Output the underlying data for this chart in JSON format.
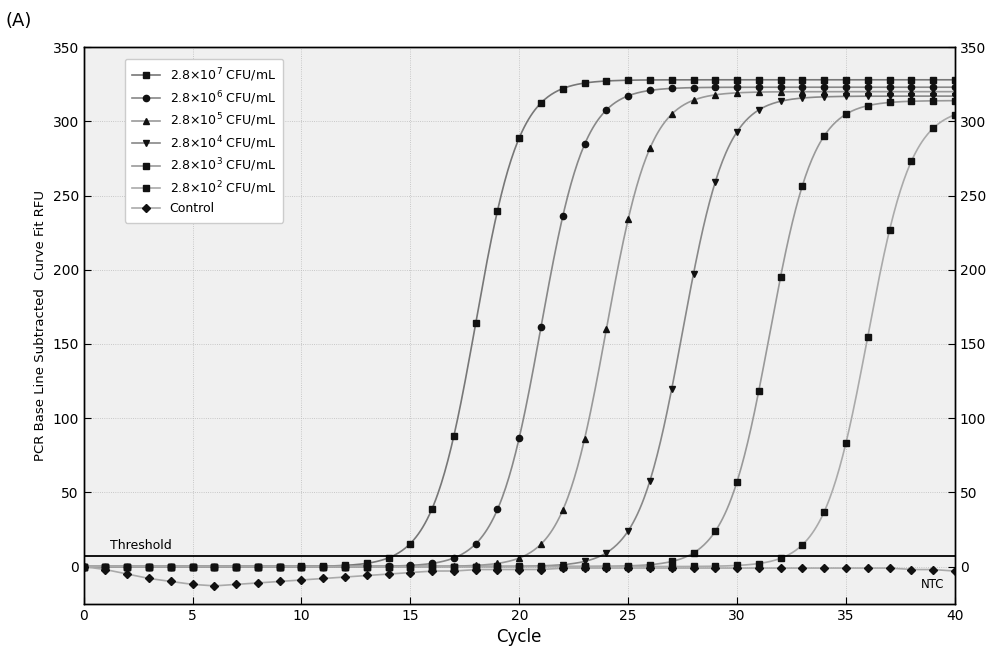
{
  "title": "(A)",
  "xlabel": "Cycle",
  "ylabel": "PCR Base Line Subtracted  Curve Fit RFU",
  "xlim": [
    0,
    40
  ],
  "ylim": [
    -25,
    350
  ],
  "yticks": [
    0,
    50,
    100,
    150,
    200,
    250,
    300,
    350
  ],
  "xticks": [
    0,
    5,
    10,
    15,
    20,
    25,
    30,
    35,
    40
  ],
  "threshold_y": 7,
  "threshold_label": "Threshold",
  "ntc_label": "NTC",
  "series": [
    {
      "label": "2.8×10$^7$ CFU/mL",
      "midpoint": 18.0,
      "steepness": 1.0,
      "color": "#999999",
      "marker": "s",
      "plateau": 328
    },
    {
      "label": "2.8×10$^6$ CFU/mL",
      "midpoint": 21.0,
      "steepness": 1.0,
      "color": "#888888",
      "marker": "o",
      "plateau": 323
    },
    {
      "label": "2.8×10$^5$ CFU/mL",
      "midpoint": 24.0,
      "steepness": 1.0,
      "color": "#999999",
      "marker": "^",
      "plateau": 320
    },
    {
      "label": "2.8×10$^4$ CFU/mL",
      "midpoint": 27.5,
      "steepness": 1.0,
      "color": "#888888",
      "marker": "v",
      "plateau": 317
    },
    {
      "label": "2.8×10$^3$ CFU/mL",
      "midpoint": 31.5,
      "steepness": 1.0,
      "color": "#999999",
      "marker": "s",
      "plateau": 314
    },
    {
      "label": "2.8×10$^2$ CFU/mL",
      "midpoint": 36.0,
      "steepness": 1.0,
      "color": "#aaaaaa",
      "marker": "s",
      "plateau": 310
    }
  ],
  "control_label": "Control",
  "background_color": "#f0f0f0",
  "fig_bg": "#ffffff",
  "line_color": "#555555",
  "marker_color": "#111111",
  "marker_size": 4.5,
  "linewidth": 1.2
}
